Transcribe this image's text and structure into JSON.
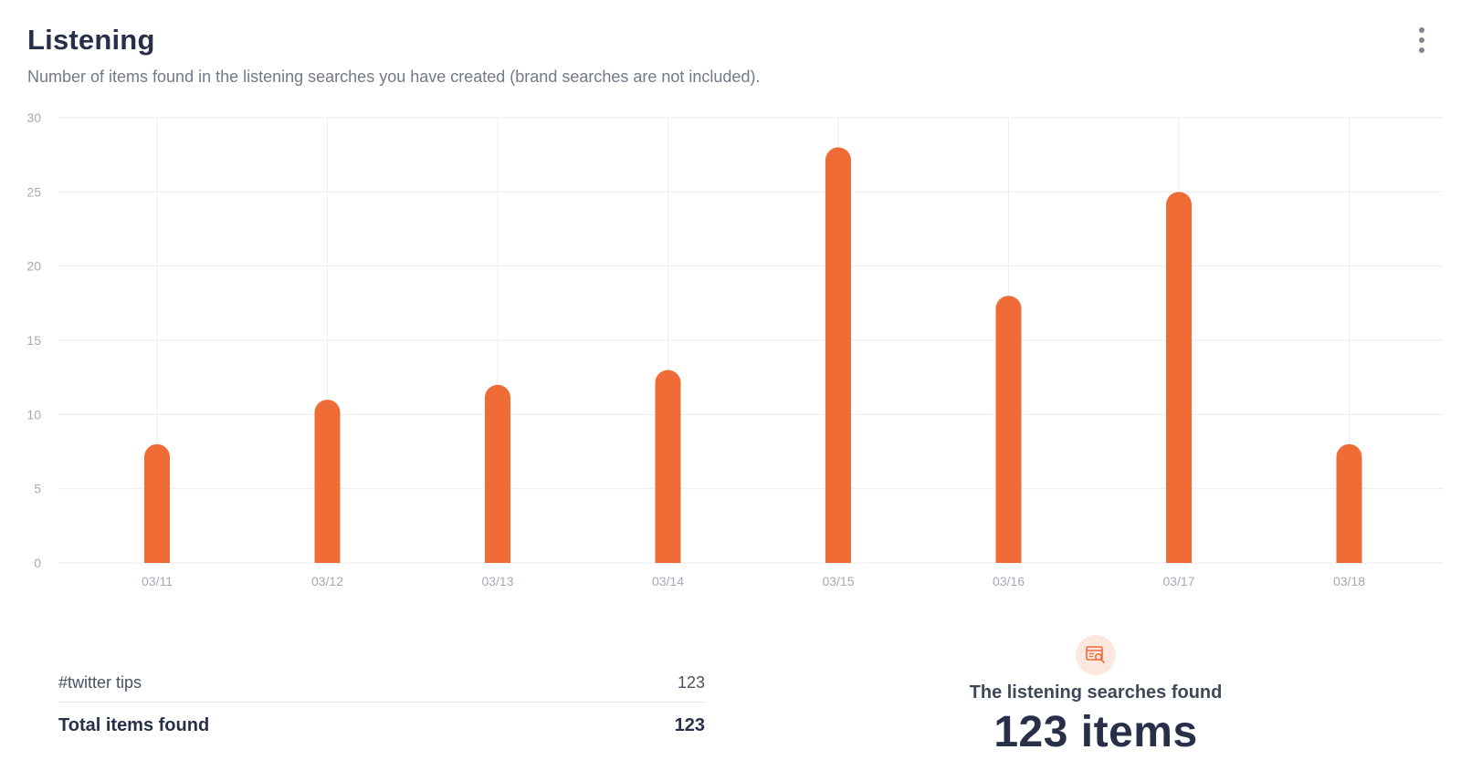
{
  "header": {
    "title": "Listening",
    "subtitle": "Number of items found in the listening searches you have created (brand searches are not included).",
    "menu_icon": "more-vertical-icon"
  },
  "chart_data": {
    "type": "bar",
    "categories": [
      "03/11",
      "03/12",
      "03/13",
      "03/14",
      "03/15",
      "03/16",
      "03/17",
      "03/18"
    ],
    "values": [
      8,
      11,
      12,
      13,
      28,
      18,
      25,
      8
    ],
    "ylim": [
      0,
      30
    ],
    "yticks": [
      "30",
      "25",
      "20",
      "15",
      "10",
      "5",
      "0"
    ],
    "grid": true,
    "bar_color": "#ef6c37",
    "title": "",
    "xlabel": "",
    "ylabel": ""
  },
  "searches": {
    "rows": [
      {
        "name": "#twitter tips",
        "count": "123"
      }
    ],
    "total_label": "Total items found",
    "total_value": "123"
  },
  "summary": {
    "icon": "search-results-icon",
    "label": "The listening searches found",
    "value": "123 items"
  },
  "colors": {
    "accent": "#ef6c37",
    "accent_light": "#fde8df",
    "title_text": "#283049",
    "muted_text": "#727a89"
  }
}
